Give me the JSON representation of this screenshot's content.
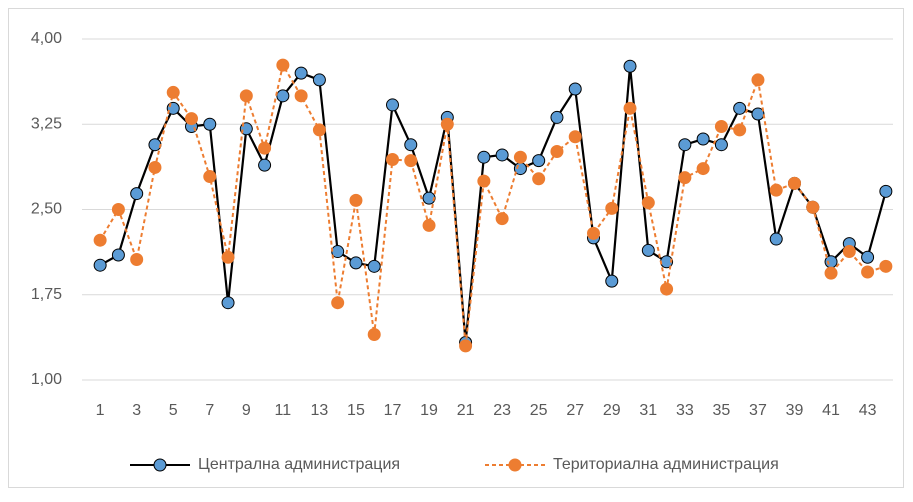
{
  "chart_data": {
    "type": "line",
    "categories": [
      "1",
      null,
      "3",
      null,
      "5",
      null,
      "7",
      null,
      "9",
      null,
      "11",
      null,
      "13",
      null,
      "15",
      null,
      "17",
      null,
      "19",
      null,
      "21",
      null,
      "23",
      null,
      "25",
      null,
      "27",
      null,
      "29",
      null,
      "31",
      null,
      "33",
      null,
      "35",
      null,
      "37",
      null,
      "39",
      null,
      "41",
      null,
      "43",
      null
    ],
    "series": [
      {
        "name": "Централна администрация",
        "color": "#5b9bd5",
        "line_color": "#000000",
        "dashed": false,
        "values": [
          2.01,
          2.1,
          2.64,
          3.07,
          3.39,
          3.23,
          3.25,
          1.68,
          3.21,
          2.89,
          3.5,
          3.7,
          3.64,
          2.13,
          2.03,
          2.0,
          3.42,
          3.07,
          2.6,
          3.31,
          1.33,
          2.96,
          2.98,
          2.86,
          2.93,
          3.31,
          3.56,
          2.25,
          1.87,
          3.76,
          2.14,
          2.04,
          3.07,
          3.12,
          3.07,
          3.39,
          3.34,
          2.24,
          2.73,
          2.52,
          2.04,
          2.2,
          2.08,
          2.66
        ]
      },
      {
        "name": "Териториална администрация",
        "color": "#ed7d31",
        "line_color": "#ed7d31",
        "dashed": true,
        "values": [
          2.23,
          2.5,
          2.06,
          2.87,
          3.53,
          3.3,
          2.79,
          2.08,
          3.5,
          3.04,
          3.77,
          3.5,
          3.2,
          1.68,
          2.58,
          1.4,
          2.94,
          2.93,
          2.36,
          3.25,
          1.3,
          2.75,
          2.42,
          2.96,
          2.77,
          3.01,
          3.14,
          2.29,
          2.51,
          3.39,
          2.56,
          1.8,
          2.78,
          2.86,
          3.23,
          3.2,
          3.64,
          2.67,
          2.73,
          2.52,
          1.94,
          2.13,
          1.95,
          2.0
        ]
      }
    ],
    "ylim": [
      1,
      4
    ],
    "yticks": [
      {
        "value": 1,
        "label": "1,00"
      },
      {
        "value": 1.75,
        "label": "1,75"
      },
      {
        "value": 2.5,
        "label": "2,50"
      },
      {
        "value": 3.25,
        "label": "3,25"
      },
      {
        "value": 4,
        "label": "4,00"
      }
    ],
    "grid": true,
    "legend": "bottom"
  }
}
